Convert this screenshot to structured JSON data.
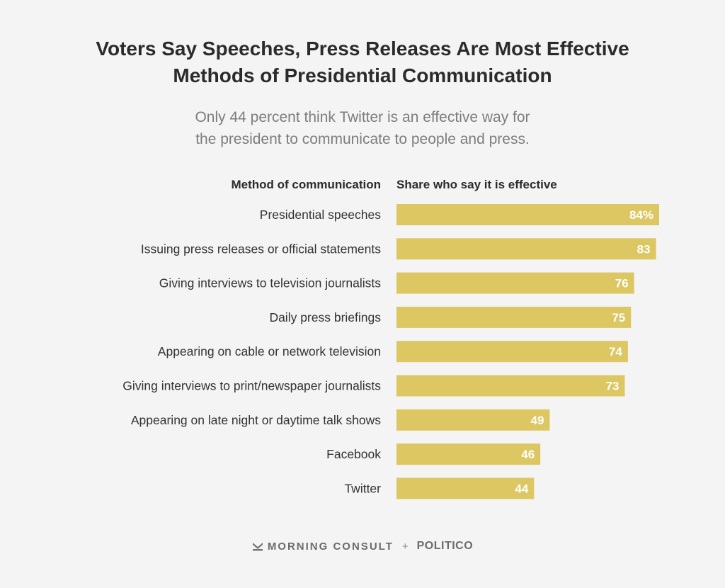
{
  "chart_data": {
    "type": "bar",
    "orientation": "horizontal",
    "title": "Voters Say Speeches, Press Releases Are Most Effective Methods of Presidential Communication",
    "title_lines": [
      "Voters Say Speeches, Press Releases Are Most Effective",
      "Methods of Presidential Communication"
    ],
    "subtitle_lines": [
      "Only 44 percent think Twitter is an effective way for",
      "the president to communicate to people and press."
    ],
    "category_header": "Method of communication",
    "value_header": "Share who say it is effective",
    "categories": [
      "Presidential speeches",
      "Issuing press releases or official statements",
      "Giving interviews to television journalists",
      "Daily press briefings",
      "Appearing on cable or network television",
      "Giving interviews to print/newspaper journalists",
      "Appearing on late night or daytime talk shows",
      "Facebook",
      "Twitter"
    ],
    "values": [
      84,
      83,
      76,
      75,
      74,
      73,
      49,
      46,
      44
    ],
    "value_labels": [
      "84%",
      "83",
      "76",
      "75",
      "74",
      "73",
      "49",
      "46",
      "44"
    ],
    "xlim": [
      0,
      100
    ],
    "bar_color": "#dcc763",
    "label_color": "#ffffff",
    "grid": false
  },
  "footer": {
    "brand1": "MORNING CONSULT",
    "separator": "+",
    "brand2": "POLITICO"
  }
}
